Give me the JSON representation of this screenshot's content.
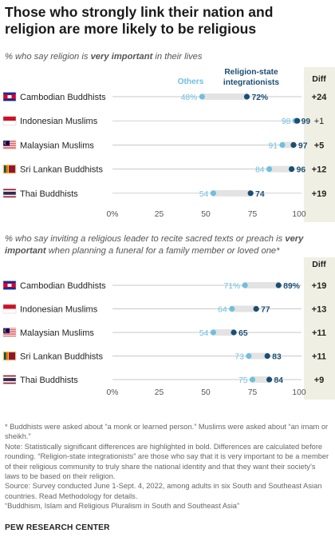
{
  "title": "Those who strongly link their nation and religion are more likely to be religious",
  "footnotes": [
    "* Buddhists were asked about “a monk or learned person.” Muslims were asked about “an imam or sheikh.”",
    "Note: Statistically significant differences are highlighted in bold. Differences are calculated before rounding. “Religion-state integrationists” are those who say that it is very important to be a member of their religious community to truly share the national identity and that they want their society’s laws to be based on their religion.",
    "Source: Survey conducted June 1-Sept. 4, 2022, among adults in six South and Southeast Asian countries. Read Methodology for details.",
    "“Buddhism, Islam and Religious Pluralism in South and Southeast Asia”"
  ],
  "brand": "PEW RESEARCH CENTER",
  "colors": {
    "others": "#6fbfdf",
    "integrationists": "#1b4e73",
    "diff_bg": "#efefe3",
    "range_bar": "#e3e3e3"
  },
  "chart_data": [
    {
      "type": "dot",
      "subtitle_parts": [
        "% who say religion is ",
        "very important",
        " in their lives"
      ],
      "legend": {
        "others": "Others",
        "integrationists": "Religion-state integrationists"
      },
      "diff_label": "Diff",
      "xlim": [
        0,
        100
      ],
      "ticks": [
        0,
        25,
        50,
        75,
        100
      ],
      "tick_labels": [
        "0%",
        "25",
        "50",
        "75",
        "100"
      ],
      "rows": [
        {
          "label": "Cambodian Buddhists",
          "flag": "cambodia-flag",
          "others": 48,
          "integrationists": 72,
          "others_label": "48%",
          "integrationists_label": "72%",
          "diff": "+24",
          "diff_bold": true
        },
        {
          "label": "Indonesian Muslims",
          "flag": "indonesia-flag",
          "others": 98,
          "integrationists": 99,
          "others_label": "98",
          "integrationists_label": "99",
          "diff": "+1",
          "diff_bold": false
        },
        {
          "label": "Malaysian Muslims",
          "flag": "malaysia-flag",
          "others": 91,
          "integrationists": 97,
          "others_label": "91",
          "integrationists_label": "97",
          "diff": "+5",
          "diff_bold": true
        },
        {
          "label": "Sri Lankan Buddhists",
          "flag": "sri-lanka-flag",
          "others": 84,
          "integrationists": 96,
          "others_label": "84",
          "integrationists_label": "96",
          "diff": "+12",
          "diff_bold": true
        },
        {
          "label": "Thai Buddhists",
          "flag": "thailand-flag",
          "others": 54,
          "integrationists": 74,
          "others_label": "54",
          "integrationists_label": "74",
          "diff": "+19",
          "diff_bold": true
        }
      ]
    },
    {
      "type": "dot",
      "subtitle_parts": [
        "% who say inviting a religious leader to recite sacred texts or preach is ",
        "very important",
        " when planning a funeral for a family member or loved one*"
      ],
      "diff_label": "Diff",
      "xlim": [
        0,
        100
      ],
      "ticks": [
        0,
        25,
        50,
        75,
        100
      ],
      "tick_labels": [
        "0%",
        "25",
        "50",
        "75",
        "100"
      ],
      "rows": [
        {
          "label": "Cambodian Buddhists",
          "flag": "cambodia-flag",
          "others": 71,
          "integrationists": 89,
          "others_label": "71%",
          "integrationists_label": "89%",
          "diff": "+19",
          "diff_bold": true
        },
        {
          "label": "Indonesian Muslims",
          "flag": "indonesia-flag",
          "others": 64,
          "integrationists": 77,
          "others_label": "64",
          "integrationists_label": "77",
          "diff": "+13",
          "diff_bold": true
        },
        {
          "label": "Malaysian Muslims",
          "flag": "malaysia-flag",
          "others": 54,
          "integrationists": 65,
          "others_label": "54",
          "integrationists_label": "65",
          "diff": "+11",
          "diff_bold": true
        },
        {
          "label": "Sri Lankan Buddhists",
          "flag": "sri-lanka-flag",
          "others": 73,
          "integrationists": 83,
          "others_label": "73",
          "integrationists_label": "83",
          "diff": "+11",
          "diff_bold": true
        },
        {
          "label": "Thai Buddhists",
          "flag": "thailand-flag",
          "others": 75,
          "integrationists": 84,
          "others_label": "75",
          "integrationists_label": "84",
          "diff": "+9",
          "diff_bold": true
        }
      ]
    }
  ]
}
